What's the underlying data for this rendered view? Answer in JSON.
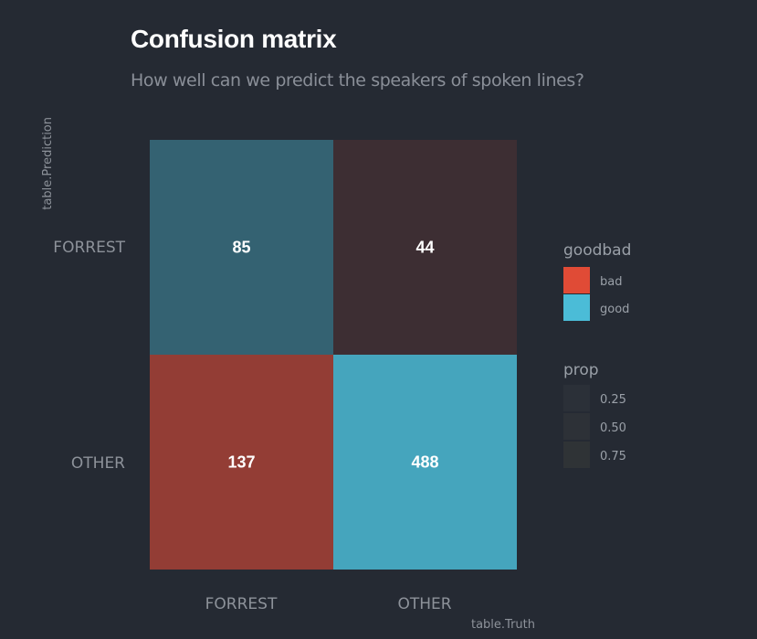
{
  "chart_data": {
    "type": "heatmap",
    "title": "Confusion matrix",
    "subtitle": "How well can we predict the speakers of spoken lines?",
    "xlabel": "table.Truth",
    "ylabel": "table.Prediction",
    "x_categories": [
      "FORREST",
      "OTHER"
    ],
    "y_categories": [
      "FORREST",
      "OTHER"
    ],
    "cells": [
      {
        "truth": "FORREST",
        "prediction": "FORREST",
        "value": 85,
        "goodbad": "good",
        "prop": 0.38
      },
      {
        "truth": "OTHER",
        "prediction": "FORREST",
        "value": 44,
        "goodbad": "bad",
        "prop": 0.08
      },
      {
        "truth": "FORREST",
        "prediction": "OTHER",
        "value": 137,
        "goodbad": "bad",
        "prop": 0.62
      },
      {
        "truth": "OTHER",
        "prediction": "OTHER",
        "value": 488,
        "goodbad": "good",
        "prop": 0.92
      }
    ],
    "legend_fill": {
      "title": "goodbad",
      "items": [
        {
          "label": "bad",
          "color": "#e04b36"
        },
        {
          "label": "good",
          "color": "#4bbcd7"
        }
      ]
    },
    "legend_alpha": {
      "title": "prop",
      "items": [
        "0.25",
        "0.50",
        "0.75"
      ]
    },
    "colors": {
      "background": "#252a33",
      "bad": "#e04b36",
      "good": "#4bbcd7"
    }
  }
}
